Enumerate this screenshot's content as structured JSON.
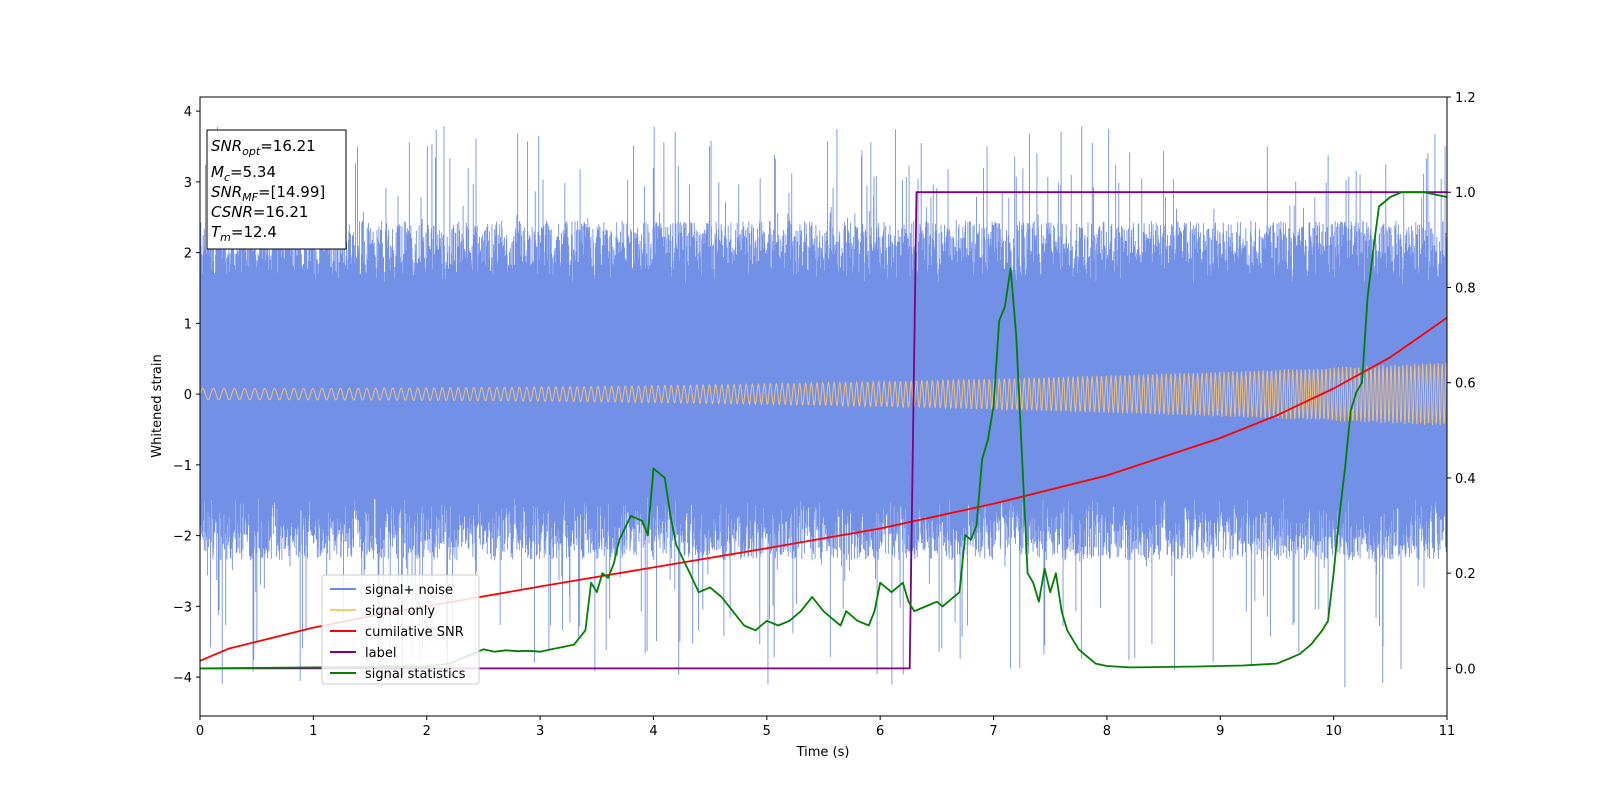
{
  "chart_data": {
    "type": "line",
    "xlabel": "Time (s)",
    "ylabel": "Whitened strain",
    "xlim": [
      0,
      11
    ],
    "ylim_left": [
      -4.55,
      4.2
    ],
    "ylim_right": [
      -0.1,
      1.2
    ],
    "x_ticks": [
      "0",
      "1",
      "2",
      "3",
      "4",
      "5",
      "6",
      "7",
      "8",
      "9",
      "10",
      "11"
    ],
    "y_ticks_left": [
      "−4",
      "−3",
      "−2",
      "−1",
      "0",
      "1",
      "2",
      "3",
      "4"
    ],
    "y_ticks_right": [
      "0.0",
      "0.2",
      "0.4",
      "0.6",
      "0.8",
      "1.0",
      "1.2"
    ],
    "annotation": {
      "lines": [
        {
          "base": "SNR",
          "sub": "opt",
          "rest": "=16.21"
        },
        {
          "base": "M",
          "sub": "c",
          "rest": "=5.34"
        },
        {
          "base": "SNR",
          "sub": "MF",
          "rest": "=[14.99]"
        },
        {
          "base": "CSNR",
          "sub": "",
          "rest": "=16.21"
        },
        {
          "base": "T",
          "sub": "m",
          "rest": "=12.4"
        }
      ]
    },
    "legend": {
      "position": "lower-left",
      "entries": [
        {
          "label": "signal+ noise",
          "color": "#6b8ae6"
        },
        {
          "label": "signal only",
          "color": "#ffc873"
        },
        {
          "label": "cumilative SNR",
          "color": "#ff0000"
        },
        {
          "label": "label",
          "color": "#800080"
        },
        {
          "label": "signal statistics",
          "color": "#008000"
        }
      ]
    },
    "series": [
      {
        "name": "signal+ noise",
        "axis": "left",
        "color": "#6b8ae6",
        "kind": "noise-band",
        "band_lower": -1.9,
        "band_upper": 2.0,
        "peak_extent": [
          -4.15,
          3.8
        ],
        "seed": 7
      },
      {
        "name": "signal only",
        "axis": "left",
        "color": "#ffc873",
        "kind": "chirp",
        "amplitude_start": 0.08,
        "amplitude_end": 0.45,
        "cycles": 115
      },
      {
        "name": "cumilative SNR",
        "axis": "left",
        "color": "#ff0000",
        "x": [
          0,
          0.25,
          0.5,
          1.0,
          1.5,
          2.0,
          3.0,
          4.0,
          5.0,
          6.0,
          7.0,
          8.0,
          9.0,
          9.5,
          10.0,
          10.5,
          11.0
        ],
        "y": [
          -3.77,
          -3.6,
          -3.5,
          -3.3,
          -3.14,
          -3.0,
          -2.72,
          -2.45,
          -2.18,
          -1.9,
          -1.55,
          -1.15,
          -0.62,
          -0.3,
          0.08,
          0.52,
          1.08
        ]
      },
      {
        "name": "label",
        "axis": "right",
        "color": "#800080",
        "x": [
          0,
          6.26,
          6.32,
          11.0
        ],
        "y": [
          0.0,
          0.0,
          1.0,
          1.0
        ]
      },
      {
        "name": "signal statistics",
        "axis": "right",
        "color": "#008000",
        "x": [
          0,
          0.5,
          1.0,
          1.5,
          2.0,
          2.2,
          2.4,
          2.5,
          2.6,
          2.7,
          2.8,
          2.9,
          3.0,
          3.1,
          3.2,
          3.3,
          3.4,
          3.45,
          3.5,
          3.55,
          3.6,
          3.65,
          3.7,
          3.8,
          3.9,
          3.95,
          4.0,
          4.05,
          4.1,
          4.15,
          4.2,
          4.3,
          4.4,
          4.5,
          4.6,
          4.7,
          4.8,
          4.9,
          5.0,
          5.1,
          5.2,
          5.3,
          5.4,
          5.5,
          5.6,
          5.65,
          5.7,
          5.8,
          5.9,
          5.95,
          6.0,
          6.1,
          6.15,
          6.2,
          6.25,
          6.3,
          6.4,
          6.5,
          6.55,
          6.6,
          6.7,
          6.75,
          6.8,
          6.85,
          6.9,
          6.95,
          7.0,
          7.05,
          7.1,
          7.15,
          7.2,
          7.25,
          7.3,
          7.35,
          7.4,
          7.45,
          7.5,
          7.55,
          7.6,
          7.65,
          7.7,
          7.75,
          7.8,
          7.9,
          8.0,
          8.2,
          8.5,
          8.8,
          9.0,
          9.2,
          9.5,
          9.6,
          9.7,
          9.8,
          9.9,
          9.95,
          10.0,
          10.05,
          10.1,
          10.15,
          10.2,
          10.25,
          10.3,
          10.35,
          10.4,
          10.5,
          10.6,
          10.8,
          11.0
        ],
        "y": [
          0.0,
          0.001,
          0.002,
          0.003,
          0.004,
          0.01,
          0.03,
          0.04,
          0.035,
          0.038,
          0.036,
          0.037,
          0.035,
          0.04,
          0.045,
          0.05,
          0.08,
          0.18,
          0.16,
          0.2,
          0.19,
          0.22,
          0.27,
          0.32,
          0.31,
          0.28,
          0.42,
          0.41,
          0.4,
          0.32,
          0.26,
          0.21,
          0.16,
          0.17,
          0.15,
          0.12,
          0.09,
          0.08,
          0.1,
          0.09,
          0.1,
          0.12,
          0.15,
          0.12,
          0.1,
          0.09,
          0.12,
          0.1,
          0.09,
          0.12,
          0.18,
          0.16,
          0.17,
          0.18,
          0.14,
          0.12,
          0.13,
          0.14,
          0.13,
          0.14,
          0.16,
          0.28,
          0.27,
          0.3,
          0.44,
          0.48,
          0.55,
          0.73,
          0.76,
          0.84,
          0.7,
          0.45,
          0.2,
          0.18,
          0.14,
          0.21,
          0.16,
          0.2,
          0.12,
          0.08,
          0.06,
          0.04,
          0.03,
          0.01,
          0.005,
          0.002,
          0.003,
          0.004,
          0.005,
          0.006,
          0.01,
          0.02,
          0.03,
          0.05,
          0.08,
          0.1,
          0.2,
          0.32,
          0.42,
          0.54,
          0.58,
          0.6,
          0.78,
          0.88,
          0.97,
          0.99,
          1.0,
          1.0,
          0.99
        ]
      }
    ]
  }
}
